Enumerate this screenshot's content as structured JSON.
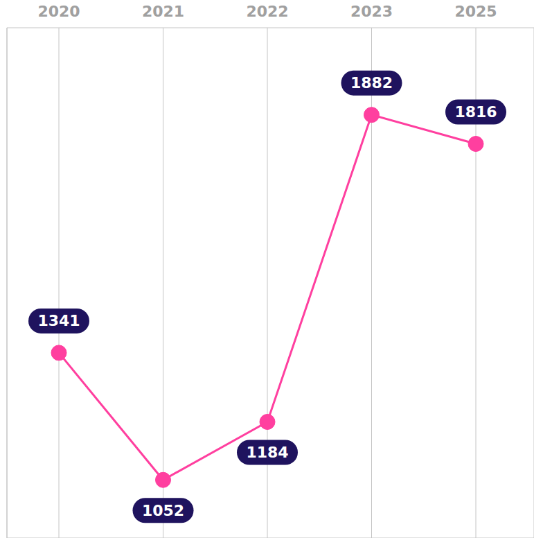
{
  "chart_data": {
    "type": "line",
    "categories": [
      "2020",
      "2021",
      "2022",
      "2023",
      "2025"
    ],
    "values": [
      1341,
      1052,
      1184,
      1882,
      1816
    ],
    "color": "#ff3f9f",
    "ylim": [
      920,
      2080
    ],
    "yticks": [
      1000,
      1100,
      1200,
      1300,
      1400,
      1500,
      1600,
      1700,
      1800,
      1900,
      2000
    ],
    "grid": true,
    "data_labels": true,
    "tick_labels": "x",
    "marker": "circle"
  }
}
